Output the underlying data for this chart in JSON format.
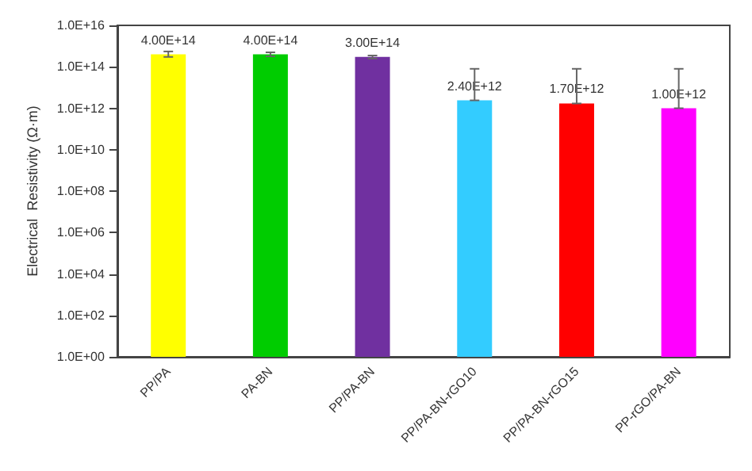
{
  "chart_data": {
    "type": "bar",
    "ylabel": "Electrical  Resistivity (Ω·m)",
    "categories": [
      "PP/PA",
      "PA-BN",
      "PP/PA-BN",
      "PP/PA-BN-rGO10",
      "PP/PA-BN-rGO15",
      "PP-rGO/PA-BN"
    ],
    "values": [
      400000000000000.0,
      400000000000000.0,
      300000000000000.0,
      2400000000000.0,
      1700000000000.0,
      1000000000000.0
    ],
    "value_labels": [
      "4.00E+14",
      "4.00E+14",
      "3.00E+14",
      "2.40E+12",
      "1.70E+12",
      "1.00E+12"
    ],
    "colors": [
      "#ffff00",
      "#00cc00",
      "#7030a0",
      "#33ccff",
      "#ff0000",
      "#ff00ff"
    ],
    "errors": [
      [
        300000000000000.0,
        550000000000000.0
      ],
      [
        320000000000000.0,
        500000000000000.0
      ],
      [
        250000000000000.0,
        350000000000000.0
      ],
      [
        2400000000000.0,
        80000000000000.0
      ],
      [
        1700000000000.0,
        80000000000000.0
      ],
      [
        1000000000000.0,
        80000000000000.0
      ]
    ],
    "log": "y",
    "ylim": [
      1,
      1e+16
    ],
    "yticks": [
      {
        "value": 1,
        "label": "1.0E+00"
      },
      {
        "value": 100,
        "label": "1.0E+02"
      },
      {
        "value": 10000,
        "label": "1.0E+04"
      },
      {
        "value": 1000000,
        "label": "1.0E+06"
      },
      {
        "value": 100000000,
        "label": "1.0E+08"
      },
      {
        "value": 10000000000,
        "label": "1.0E+10"
      },
      {
        "value": 1000000000000,
        "label": "1.0E+12"
      },
      {
        "value": 100000000000000,
        "label": "1.0E+14"
      },
      {
        "value": 10000000000000000,
        "label": "1.0E+16"
      }
    ],
    "grid": false
  }
}
